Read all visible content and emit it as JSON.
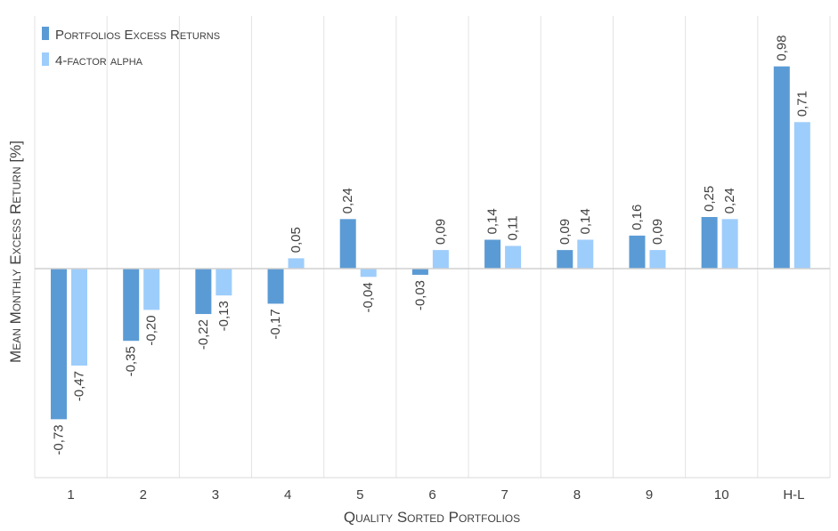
{
  "chart_data": {
    "type": "bar",
    "title": "",
    "xlabel": "Quality Sorted Portfolios",
    "ylabel": "Mean Monthly Excess Return [%]",
    "categories": [
      "1",
      "2",
      "3",
      "4",
      "5",
      "6",
      "7",
      "8",
      "9",
      "10",
      "H-L"
    ],
    "series": [
      {
        "name": "Portfolios Excess Returns",
        "color": "#5b9bd5",
        "values": [
          -0.73,
          -0.35,
          -0.22,
          -0.17,
          0.24,
          -0.03,
          0.14,
          0.09,
          0.16,
          0.25,
          0.98
        ],
        "labels": [
          "-0,73",
          "-0,35",
          "-0,22",
          "-0,17",
          "0,24",
          "-0,03",
          "0,14",
          "0,09",
          "0,16",
          "0,25",
          "0,98"
        ]
      },
      {
        "name": "4-factor alpha",
        "color": "#9dcdfb",
        "values": [
          -0.47,
          -0.2,
          -0.13,
          0.05,
          -0.04,
          0.09,
          0.11,
          0.14,
          0.09,
          0.24,
          0.71
        ],
        "labels": [
          "-0,47",
          "-0,20",
          "-0,13",
          "0,05",
          "-0,04",
          "0,09",
          "0,11",
          "0,14",
          "0,09",
          "0,24",
          "0,71"
        ]
      }
    ],
    "ylim": [
      -1.0,
      1.2
    ],
    "grid": "vertical",
    "legend": "top-left",
    "data_labels": "rotated-vertical"
  }
}
